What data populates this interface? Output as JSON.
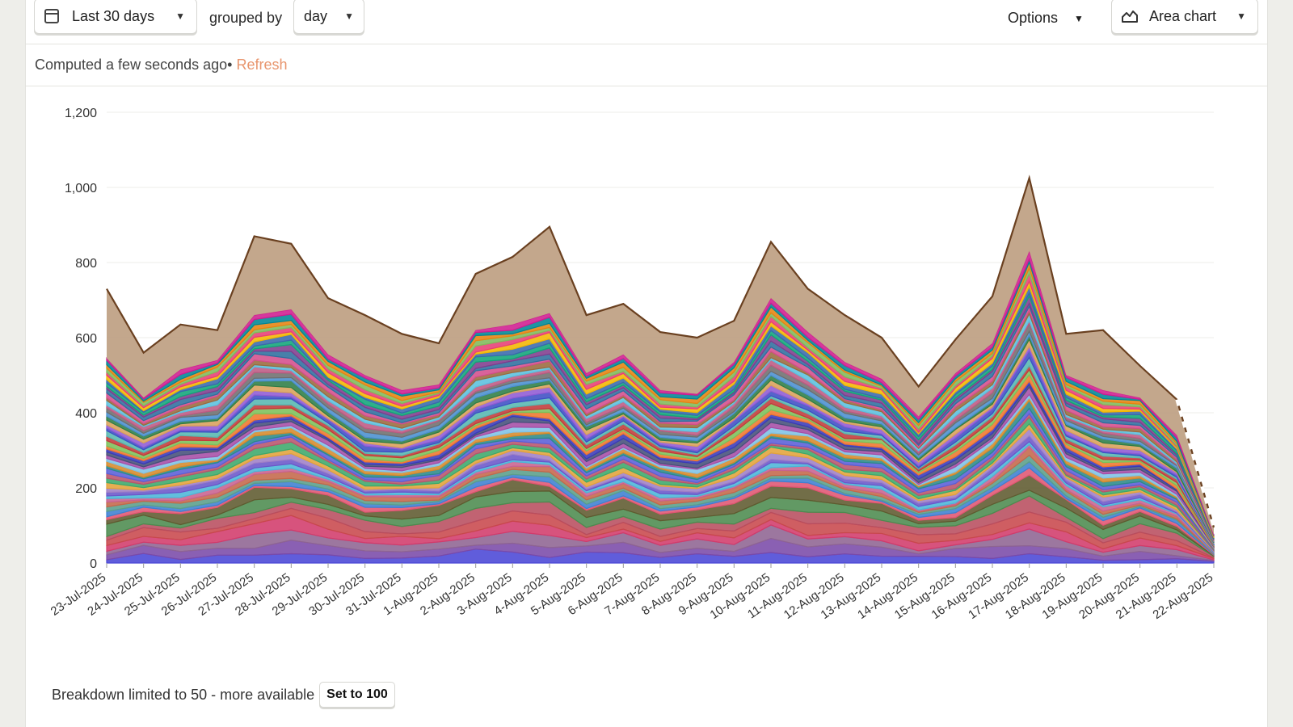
{
  "toolbar": {
    "date_range_label": "Last 30 days",
    "grouped_by_label": "grouped by",
    "interval_label": "day",
    "options_label": "Options",
    "chart_type_label": "Area chart"
  },
  "status": {
    "computed_text": "Computed a few seconds ago",
    "separator": "•",
    "refresh_label": "Refresh"
  },
  "footer": {
    "breakdown_text": "Breakdown limited to 50 - more available",
    "set_button_label": "Set to 100"
  },
  "chart_data": {
    "type": "area",
    "stacked": true,
    "categories": [
      "23-Jul-2025",
      "24-Jul-2025",
      "25-Jul-2025",
      "26-Jul-2025",
      "27-Jul-2025",
      "28-Jul-2025",
      "29-Jul-2025",
      "30-Jul-2025",
      "31-Jul-2025",
      "1-Aug-2025",
      "2-Aug-2025",
      "3-Aug-2025",
      "4-Aug-2025",
      "5-Aug-2025",
      "6-Aug-2025",
      "7-Aug-2025",
      "8-Aug-2025",
      "9-Aug-2025",
      "10-Aug-2025",
      "11-Aug-2025",
      "12-Aug-2025",
      "13-Aug-2025",
      "14-Aug-2025",
      "15-Aug-2025",
      "16-Aug-2025",
      "17-Aug-2025",
      "18-Aug-2025",
      "19-Aug-2025",
      "20-Aug-2025",
      "21-Aug-2025",
      "22-Aug-2025"
    ],
    "y_ticks": [
      "0",
      "200",
      "400",
      "600",
      "800",
      "1,000",
      "1,200"
    ],
    "ylim": [
      0,
      1200
    ],
    "grid": true,
    "total_values": [
      730,
      560,
      635,
      620,
      870,
      850,
      705,
      660,
      610,
      585,
      770,
      815,
      895,
      660,
      690,
      615,
      600,
      645,
      855,
      730,
      660,
      600,
      470,
      595,
      710,
      1025,
      610,
      620,
      525,
      435,
      95
    ],
    "top_series_values": [
      185,
      120,
      120,
      80,
      210,
      175,
      150,
      160,
      150,
      110,
      150,
      180,
      230,
      155,
      135,
      155,
      150,
      110,
      150,
      115,
      125,
      110,
      80,
      90,
      125,
      195,
      110,
      160,
      85,
      95,
      20
    ],
    "colors": [
      "#4a47d6",
      "#7a4aa8",
      "#8e6492",
      "#d23b6b",
      "#c8484c",
      "#b84d5e",
      "#4c8b4f",
      "#5f5a2f",
      "#e05572",
      "#3e7fd1",
      "#5a9e8a",
      "#c4684a",
      "#c8628f",
      "#4bb6d8",
      "#6b56c9",
      "#9e7fc7",
      "#e3a33a",
      "#3ca86b",
      "#b8546c",
      "#5a5fd8",
      "#2b8a8a",
      "#d58a2b",
      "#7ec3e6",
      "#a64da6",
      "#46507a",
      "#3a3ab8",
      "#f0762d",
      "#7cc05a",
      "#c23a3a",
      "#57b7b0",
      "#3d4fc4",
      "#8f5ad4",
      "#d9a05a",
      "#2e7d46",
      "#4a8fcf",
      "#6e6e6e",
      "#bd5a83",
      "#5bc0de",
      "#9a6a3e",
      "#d44d8c",
      "#2f6e9e",
      "#7f3c8d",
      "#11a579",
      "#3969ac",
      "#f2b701",
      "#e73f74",
      "#80ba5a",
      "#e68310",
      "#008695",
      "#cf1c90"
    ],
    "top_color": "#c0a286",
    "top_line_color": "#6a4020"
  }
}
